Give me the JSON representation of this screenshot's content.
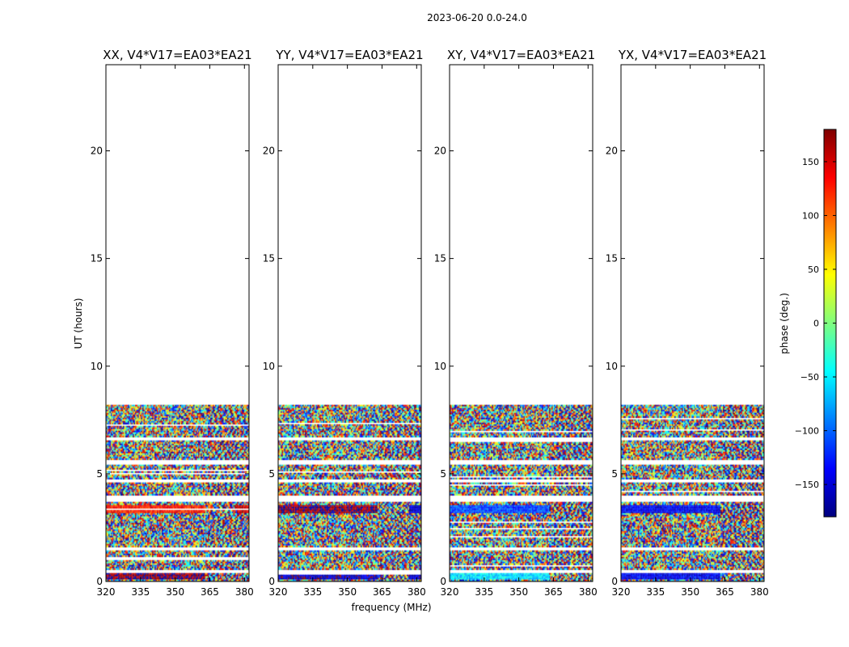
{
  "figure_title": "2023-06-20 0.0-24.0",
  "chart_data": {
    "type": "heatmap",
    "xlabel": "frequency (MHz)",
    "ylabel": "UT (hours)",
    "xlim": [
      320,
      382
    ],
    "ylim": [
      0,
      24
    ],
    "xticks": [
      320,
      335,
      350,
      365,
      380
    ],
    "yticks": [
      0,
      5,
      10,
      15,
      20
    ],
    "colorbar": {
      "label": "phase (deg.)",
      "range": [
        -180,
        180
      ],
      "ticks": [
        150,
        100,
        50,
        0,
        -50,
        -100,
        -150
      ],
      "tick_labels": [
        "150",
        "100",
        "50",
        "0",
        "−50",
        "−100",
        "−150"
      ],
      "colormap": "jet",
      "colors": [
        "#00007f",
        "#0000ff",
        "#007fff",
        "#00ffff",
        "#7fff7f",
        "#ffff00",
        "#ff7f00",
        "#ff0000",
        "#7f0000"
      ]
    },
    "data_extent_hours": [
      0,
      8.2
    ],
    "flagged_gaps_hours": [
      [
        0.4,
        0.55
      ],
      [
        1.5,
        1.65
      ],
      [
        3.7,
        4.0
      ],
      [
        4.65,
        4.8
      ],
      [
        5.45,
        5.65
      ],
      [
        6.55,
        6.75
      ]
    ],
    "panels": [
      {
        "title": "XX, V4*V17=EA03*EA21",
        "polarization": "XX",
        "band_phases": [
          {
            "hours": [
              0.15,
              0.4
            ],
            "freq_mhz": [
              320,
              363
            ],
            "phase": 175
          },
          {
            "hours": [
              3.2,
              3.55
            ],
            "freq_mhz": [
              320,
              363
            ],
            "phase": 130
          },
          {
            "hours": [
              3.2,
              3.55
            ],
            "freq_mhz": [
              377,
              382
            ],
            "phase": 150
          }
        ]
      },
      {
        "title": "YY, V4*V17=EA03*EA21",
        "polarization": "YY",
        "band_phases": [
          {
            "hours": [
              0.15,
              0.4
            ],
            "freq_mhz": [
              320,
              363
            ],
            "phase": -160
          },
          {
            "hours": [
              0.15,
              0.4
            ],
            "freq_mhz": [
              377,
              382
            ],
            "phase": -160
          },
          {
            "hours": [
              3.2,
              3.55
            ],
            "freq_mhz": [
              320,
              363
            ],
            "phase": 175
          },
          {
            "hours": [
              3.2,
              3.55
            ],
            "freq_mhz": [
              377,
              382
            ],
            "phase": -150
          }
        ]
      },
      {
        "title": "XY, V4*V17=EA03*EA21",
        "polarization": "XY",
        "band_phases": [
          {
            "hours": [
              0.15,
              0.4
            ],
            "freq_mhz": [
              320,
              363
            ],
            "phase": -55
          },
          {
            "hours": [
              3.2,
              3.55
            ],
            "freq_mhz": [
              320,
              363
            ],
            "phase": -110
          }
        ]
      },
      {
        "title": "YX, V4*V17=EA03*EA21",
        "polarization": "YX",
        "band_phases": [
          {
            "hours": [
              0.15,
              0.4
            ],
            "freq_mhz": [
              320,
              363
            ],
            "phase": -140
          },
          {
            "hours": [
              3.2,
              3.55
            ],
            "freq_mhz": [
              320,
              363
            ],
            "phase": -140
          }
        ]
      }
    ]
  }
}
